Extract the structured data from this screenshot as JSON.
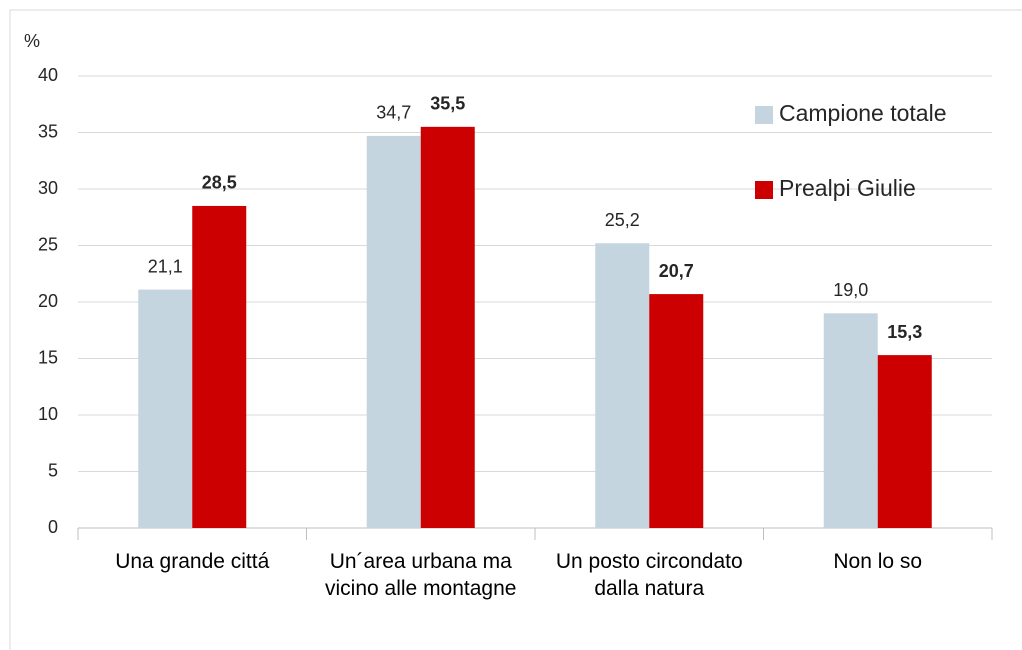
{
  "chart_data": {
    "type": "bar",
    "ylabel": "%",
    "categories": [
      "Una grande cittá",
      "Un´area urbana ma vicino alle montagne",
      "Un posto circondato dalla natura",
      "Non lo so"
    ],
    "series": [
      {
        "name": "Campione totale",
        "color": "#c5d5e0",
        "bold_labels": false,
        "values": [
          21.1,
          34.7,
          25.2,
          19.0
        ],
        "value_labels": [
          "21,1",
          "34,7",
          "25,2",
          "19,0"
        ]
      },
      {
        "name": "Prealpi Giulie",
        "color": "#cc0000",
        "bold_labels": true,
        "values": [
          28.5,
          35.5,
          20.7,
          15.3
        ],
        "value_labels": [
          "28,5",
          "35,5",
          "20,7",
          "15,3"
        ]
      }
    ],
    "ylim": [
      0,
      40
    ],
    "yticks": [
      0,
      5,
      10,
      15,
      20,
      25,
      30,
      35,
      40
    ],
    "grid": true,
    "legend": "upper right"
  }
}
